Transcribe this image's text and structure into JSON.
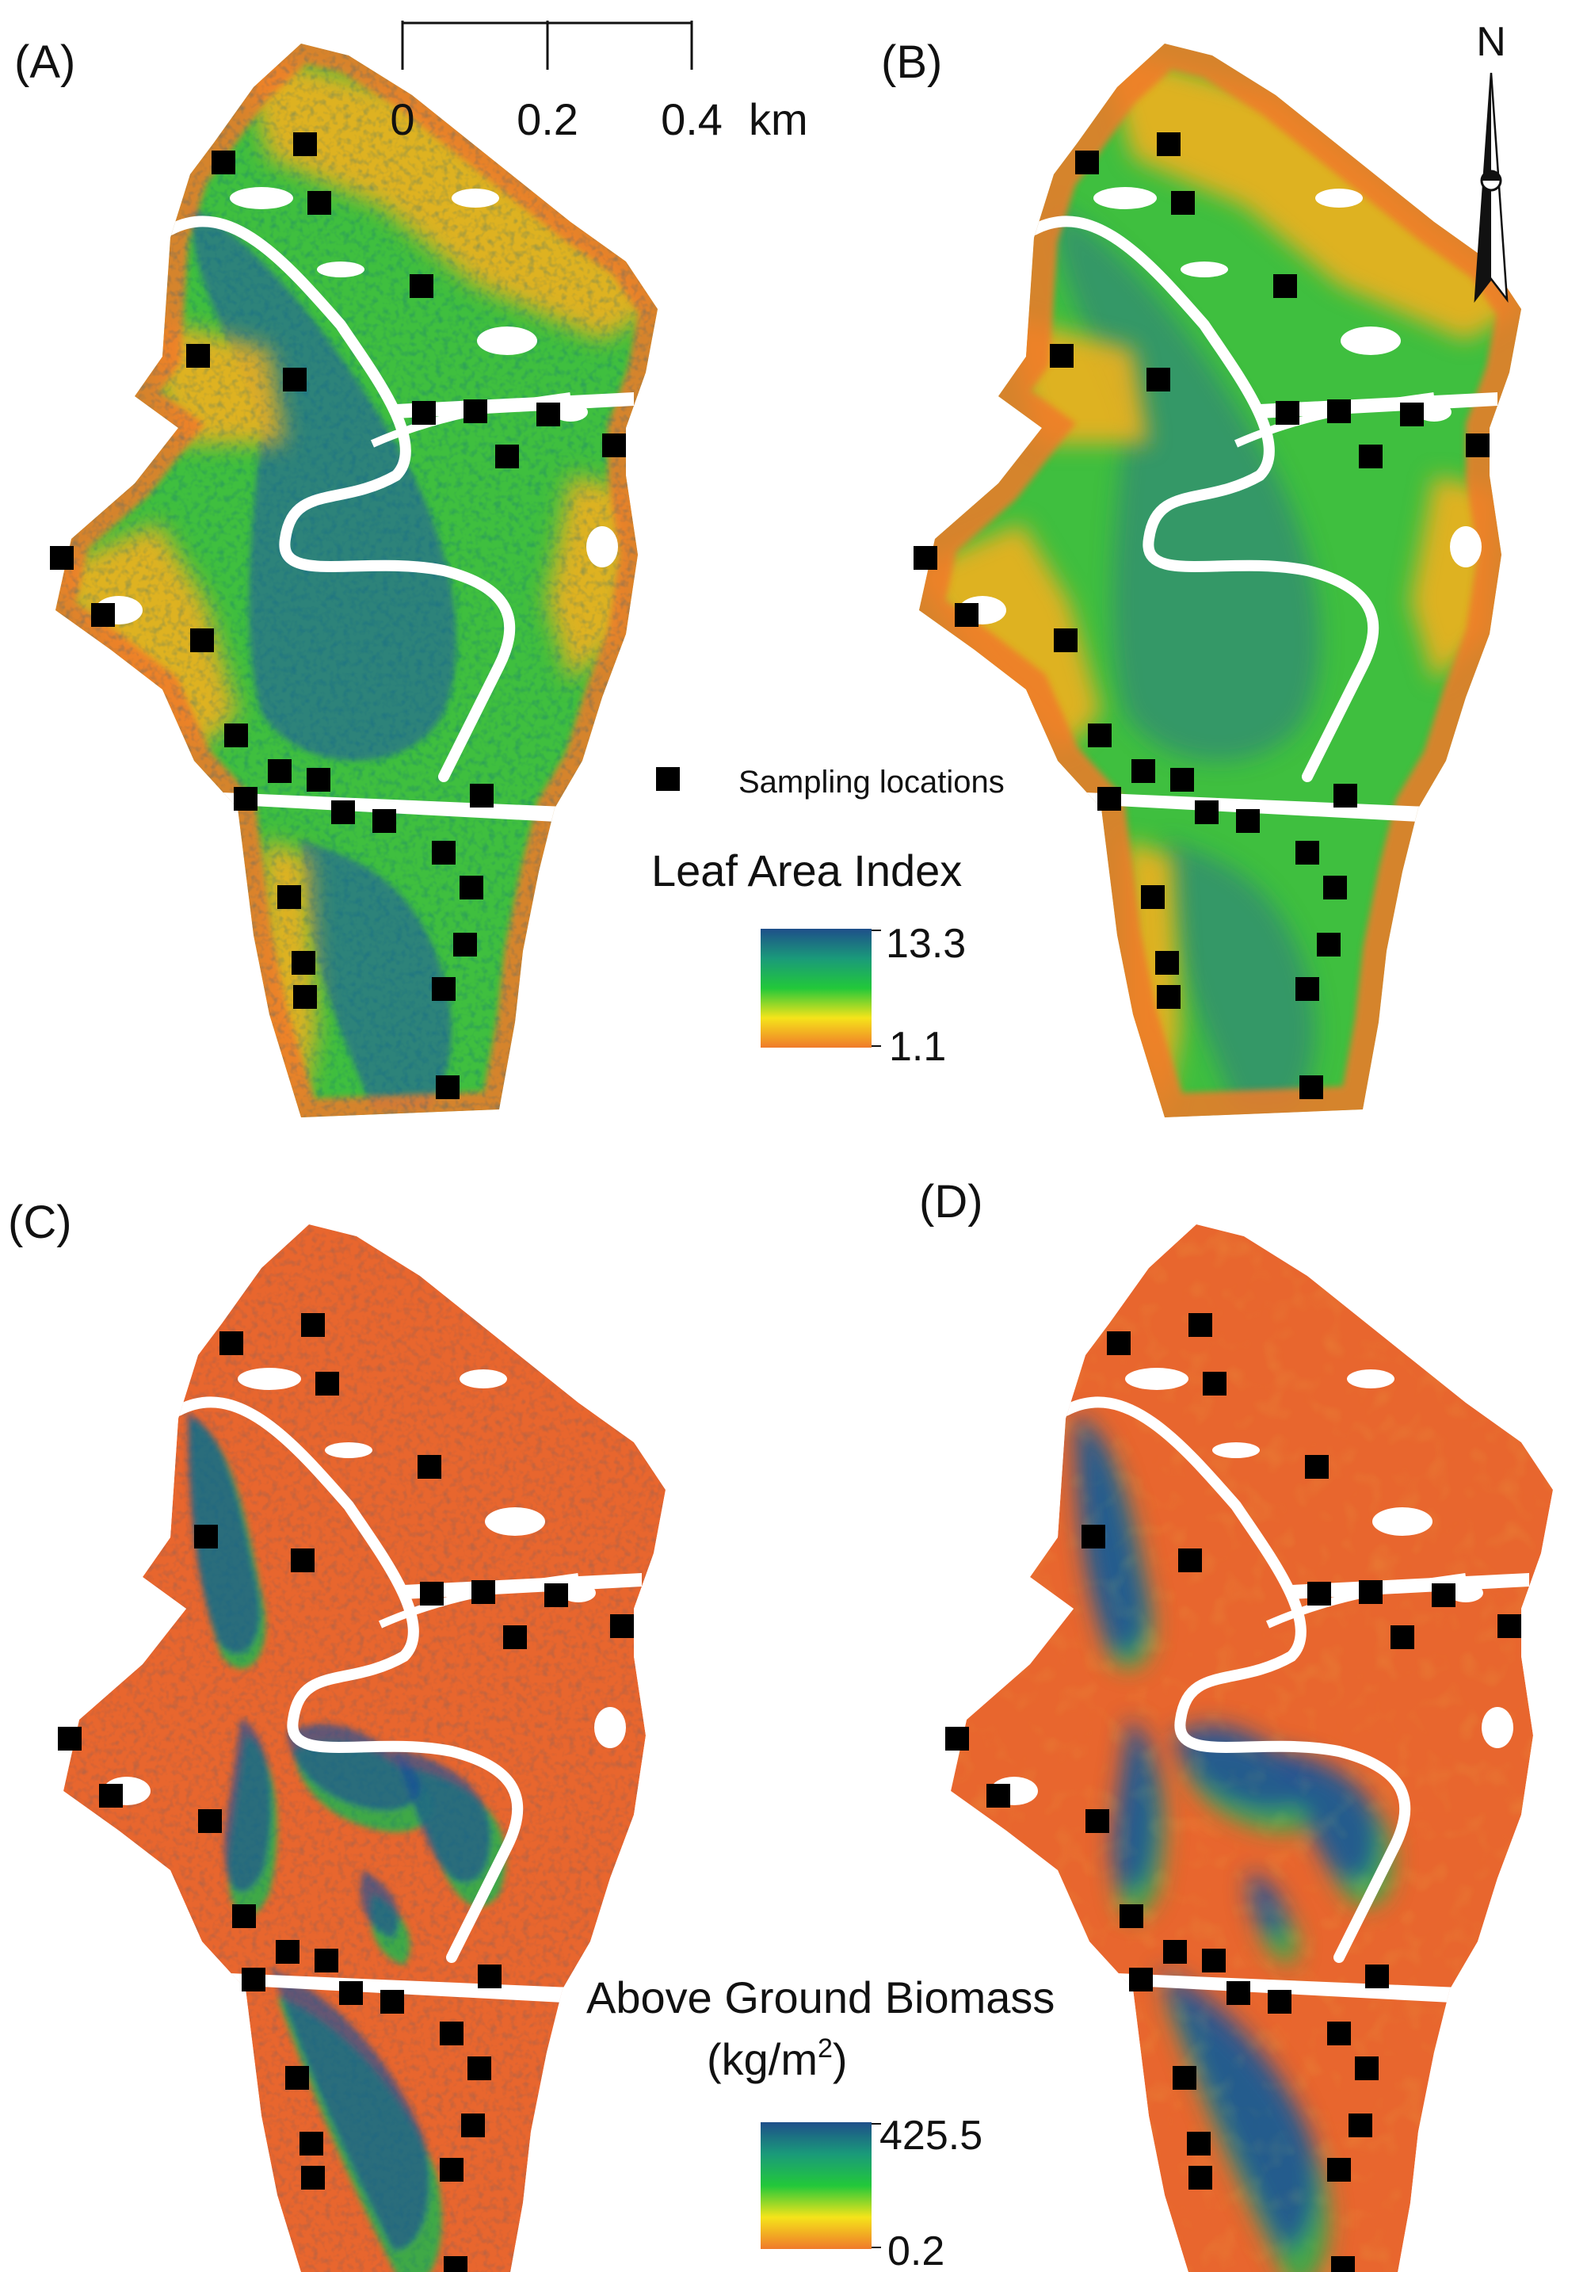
{
  "panels": [
    {
      "label": "(A)",
      "variable": "lai",
      "variant": "fine"
    },
    {
      "label": "(B)",
      "variable": "lai",
      "variant": "smooth"
    },
    {
      "label": "(C)",
      "variable": "agb",
      "variant": "fine"
    },
    {
      "label": "(D)",
      "variable": "agb",
      "variant": "smooth"
    }
  ],
  "scale_bar": {
    "ticks": [
      "0",
      "0.2",
      "0.4"
    ],
    "unit": "km"
  },
  "north_arrow": {
    "label": "N"
  },
  "sampling_legend": {
    "label": "Sampling locations"
  },
  "lai_legend": {
    "title": "Leaf Area Index",
    "max_label": "13.3",
    "min_label": "1.1",
    "colors": [
      "#1e4f8a",
      "#1a9a7a",
      "#22c83a",
      "#f5e41a",
      "#f07a2a"
    ]
  },
  "agb_legend": {
    "title": "Above Ground Biomass",
    "unit_prefix": "(kg/m",
    "unit_sup": "2",
    "unit_suffix": ")",
    "max_label": "425.5",
    "min_label": "0.2",
    "colors": [
      "#1e4f8a",
      "#1a9a7a",
      "#22c83a",
      "#f5e41a",
      "#f07a2a"
    ]
  },
  "colors": {
    "lai_high": "#2a6f8f",
    "lai_mid": "#3fbf3f",
    "lai_low": "#f0b020",
    "lai_edge": "#f07a2a",
    "agb_base": "#e8662e",
    "agb_patch": "#1d4f9a",
    "agb_mid": "#2fb04a",
    "marker": "#000000",
    "river": "#ffffff"
  }
}
